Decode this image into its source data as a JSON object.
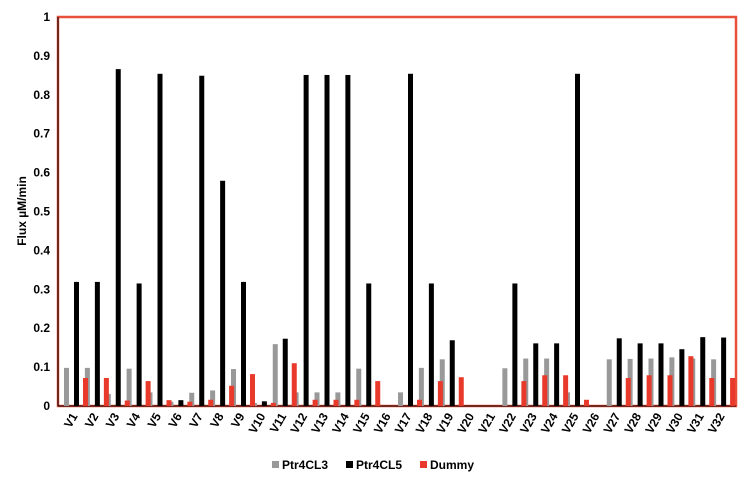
{
  "chart_data": {
    "type": "bar",
    "ylabel": "Flux µM/min",
    "xlabel": "",
    "ylim": [
      0,
      1
    ],
    "yticks": [
      "0",
      "0.1",
      "0.2",
      "0.3",
      "0.4",
      "0.5",
      "0.6",
      "0.7",
      "0.8",
      "0.9",
      "1"
    ],
    "grid": false,
    "legend_position": "bottom",
    "frame_color": "#e8503a",
    "categories": [
      "V1",
      "V2",
      "V3",
      "V4",
      "V5",
      "V6",
      "V7",
      "V8",
      "V9",
      "V10",
      "V11",
      "V12",
      "V13",
      "V14",
      "V15",
      "V16",
      "V17",
      "V18",
      "V19",
      "V20",
      "V21",
      "V22",
      "V23",
      "V24",
      "V25",
      "V26",
      "V27",
      "V28",
      "V29",
      "V30",
      "V31",
      "V32"
    ],
    "series": [
      {
        "name": "Ptr4CL3",
        "color": "#999999",
        "values": [
          0.098,
          0.098,
          0.031,
          0.096,
          0.035,
          0.011,
          0.034,
          0.04,
          0.095,
          0.008,
          0.159,
          0.035,
          0.035,
          0.035,
          0.096,
          0,
          0.035,
          0.098,
          0.12,
          0,
          0,
          0.097,
          0.122,
          0.122,
          0.035,
          0,
          0.12,
          0.121,
          0.122,
          0.125,
          0.122,
          0.12
        ]
      },
      {
        "name": "Ptr4CL5",
        "color": "#000000",
        "values": [
          0.319,
          0.319,
          0.866,
          0.315,
          0.854,
          0.015,
          0.849,
          0.579,
          0.319,
          0.012,
          0.173,
          0.851,
          0.851,
          0.851,
          0.315,
          0,
          0.854,
          0.315,
          0.169,
          0,
          0,
          0.315,
          0.161,
          0.161,
          0.854,
          0,
          0.174,
          0.161,
          0.161,
          0.146,
          0.177,
          0.176
        ]
      },
      {
        "name": "Dummy",
        "color": "#e8392a",
        "values": [
          0.072,
          0.072,
          0.014,
          0.064,
          0.015,
          0.011,
          0.016,
          0.052,
          0.082,
          0.008,
          0.11,
          0.016,
          0.016,
          0.016,
          0.064,
          0,
          0.016,
          0.064,
          0.074,
          0,
          0,
          0.064,
          0.079,
          0.079,
          0.016,
          0,
          0.072,
          0.079,
          0.079,
          0.128,
          0.072,
          0.072
        ]
      }
    ]
  }
}
